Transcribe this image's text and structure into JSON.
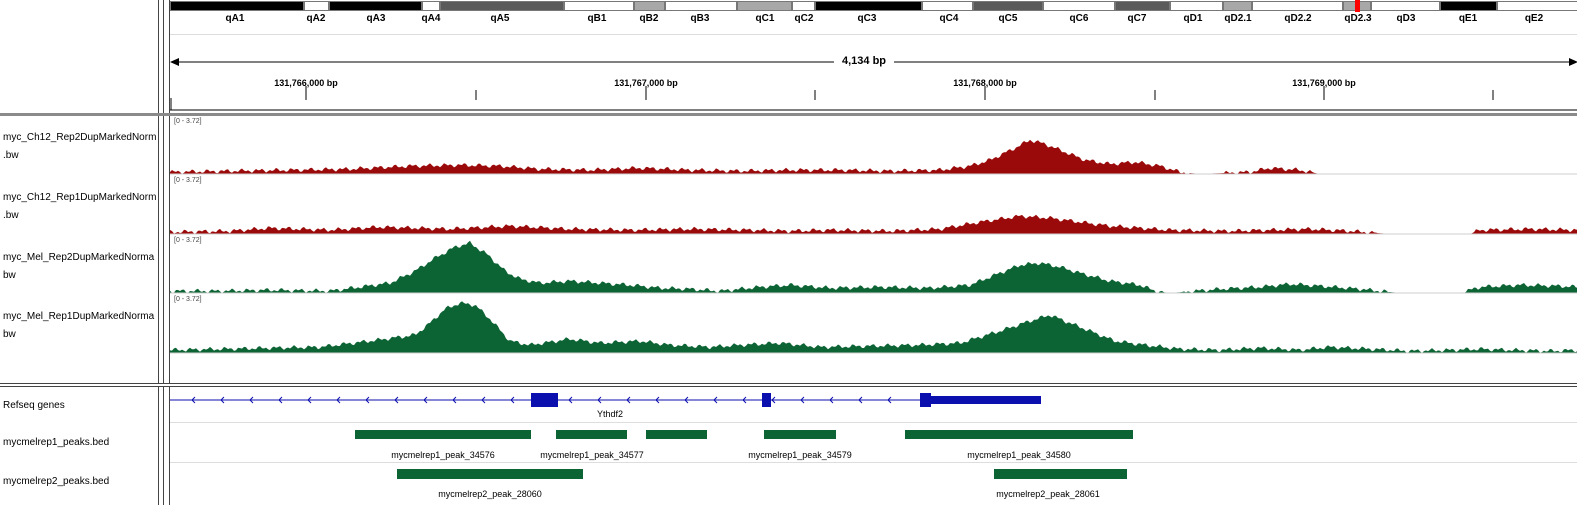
{
  "ideogram": {
    "bands": [
      {
        "label": "qA1",
        "color": "#000000"
      },
      {
        "label": "qA2",
        "color": "#ffffff"
      },
      {
        "label": "qA3",
        "color": "#000000"
      },
      {
        "label": "qA4",
        "color": "#ffffff"
      },
      {
        "label": "qA5",
        "color": "#5a5a5a"
      },
      {
        "label": "qB1",
        "color": "#ffffff"
      },
      {
        "label": "qB2",
        "color": "#a8a8a8"
      },
      {
        "label": "qB3",
        "color": "#ffffff"
      },
      {
        "label": "qC1",
        "color": "#a8a8a8"
      },
      {
        "label": "qC2",
        "color": "#ffffff"
      },
      {
        "label": "qC3",
        "color": "#000000"
      },
      {
        "label": "qC4",
        "color": "#ffffff"
      },
      {
        "label": "qC5",
        "color": "#5a5a5a"
      },
      {
        "label": "qC6",
        "color": "#ffffff"
      },
      {
        "label": "qC7",
        "color": "#5a5a5a"
      },
      {
        "label": "qD1",
        "color": "#ffffff"
      },
      {
        "label": "qD2.1",
        "color": "#a8a8a8"
      },
      {
        "label": "qD2.2",
        "color": "#ffffff"
      },
      {
        "label": "qD2.3",
        "color": "#a8a8a8"
      },
      {
        "label": "qD3",
        "color": "#ffffff"
      },
      {
        "label": "qE1",
        "color": "#000000"
      },
      {
        "label": "qE2",
        "color": "#ffffff"
      }
    ],
    "current_position_color": "#ff0000"
  },
  "ruler": {
    "span_label": "4,134 bp",
    "tick_labels": [
      "131,766,000 bp",
      "131,767,000 bp",
      "131,768,000 bp",
      "131,769,000 bp"
    ]
  },
  "data_tracks": [
    {
      "name": "myc_Ch12_Rep2DupMarkedNorm\n.bw",
      "range": "[0 - 3.72]",
      "color": "#9b0a0a"
    },
    {
      "name": "myc_Ch12_Rep1DupMarkedNorm\n.bw",
      "range": "[0 - 3.72]",
      "color": "#9b0a0a"
    },
    {
      "name": "myc_Mel_Rep2DupMarkedNorma\nbw",
      "range": "[0 - 3.72]",
      "color": "#0c6434"
    },
    {
      "name": "myc_Mel_Rep1DupMarkedNorma\nbw",
      "range": "[0 - 3.72]",
      "color": "#0c6434"
    }
  ],
  "feature_tracks": [
    {
      "name": "Refseq genes",
      "gene_label": "Ythdf2",
      "color": "#0b0fae"
    },
    {
      "name": "mycmelrep1_peaks.bed",
      "color": "#0c6434",
      "peaks": [
        "mycmelrep1_peak_34576",
        "mycmelrep1_peak_34577",
        "mycmelrep1_peak_34579",
        "mycmelrep1_peak_34580"
      ]
    },
    {
      "name": "mycmelrep2_peaks.bed",
      "color": "#0c6434",
      "peaks": [
        "mycmelrep2_peak_28060",
        "mycmelrep2_peak_28061"
      ]
    }
  ]
}
